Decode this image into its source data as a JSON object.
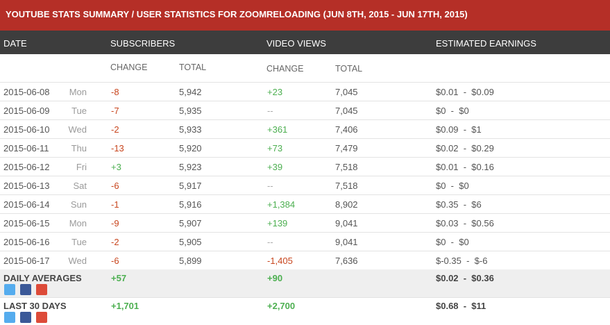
{
  "header": {
    "title": "YOUTUBE STATS SUMMARY / USER STATISTICS FOR ZOOMRELOADING (JUN 8TH, 2015 - JUN 17TH, 2015)"
  },
  "table": {
    "columns": [
      "DATE",
      "SUBSCRIBERS",
      "VIDEO VIEWS",
      "ESTIMATED EARNINGS"
    ],
    "subcolumns": [
      "CHANGE",
      "TOTAL",
      "CHANGE",
      "TOTAL"
    ],
    "rows": [
      [
        "2015-06-08",
        "Mon",
        "-8",
        "5,942",
        "+23",
        "7,045",
        "$0.01  -  $0.09"
      ],
      [
        "2015-06-09",
        "Tue",
        "-7",
        "5,935",
        "--",
        "7,045",
        "$0  -  $0"
      ],
      [
        "2015-06-10",
        "Wed",
        "-2",
        "5,933",
        "+361",
        "7,406",
        "$0.09  -  $1"
      ],
      [
        "2015-06-11",
        "Thu",
        "-13",
        "5,920",
        "+73",
        "7,479",
        "$0.02  -  $0.29"
      ],
      [
        "2015-06-12",
        "Fri",
        "+3",
        "5,923",
        "+39",
        "7,518",
        "$0.01  -  $0.16"
      ],
      [
        "2015-06-13",
        "Sat",
        "-6",
        "5,917",
        "--",
        "7,518",
        "$0  -  $0"
      ],
      [
        "2015-06-14",
        "Sun",
        "-1",
        "5,916",
        "+1,384",
        "8,902",
        "$0.35  -  $6"
      ],
      [
        "2015-06-15",
        "Mon",
        "-9",
        "5,907",
        "+139",
        "9,041",
        "$0.03  -  $0.56"
      ],
      [
        "2015-06-16",
        "Tue",
        "-2",
        "5,905",
        "--",
        "9,041",
        "$0  -  $0"
      ],
      [
        "2015-06-17",
        "Wed",
        "-6",
        "5,899",
        "-1,405",
        "7,636",
        "$-0.35  -  $-6"
      ]
    ],
    "summary": [
      [
        "DAILY AVERAGES",
        "+57",
        "+90",
        "$0.02  -  $0.36"
      ],
      [
        "LAST 30 DAYS",
        "+1,701",
        "+2,700",
        "$0.68  -  $11"
      ]
    ]
  }
}
